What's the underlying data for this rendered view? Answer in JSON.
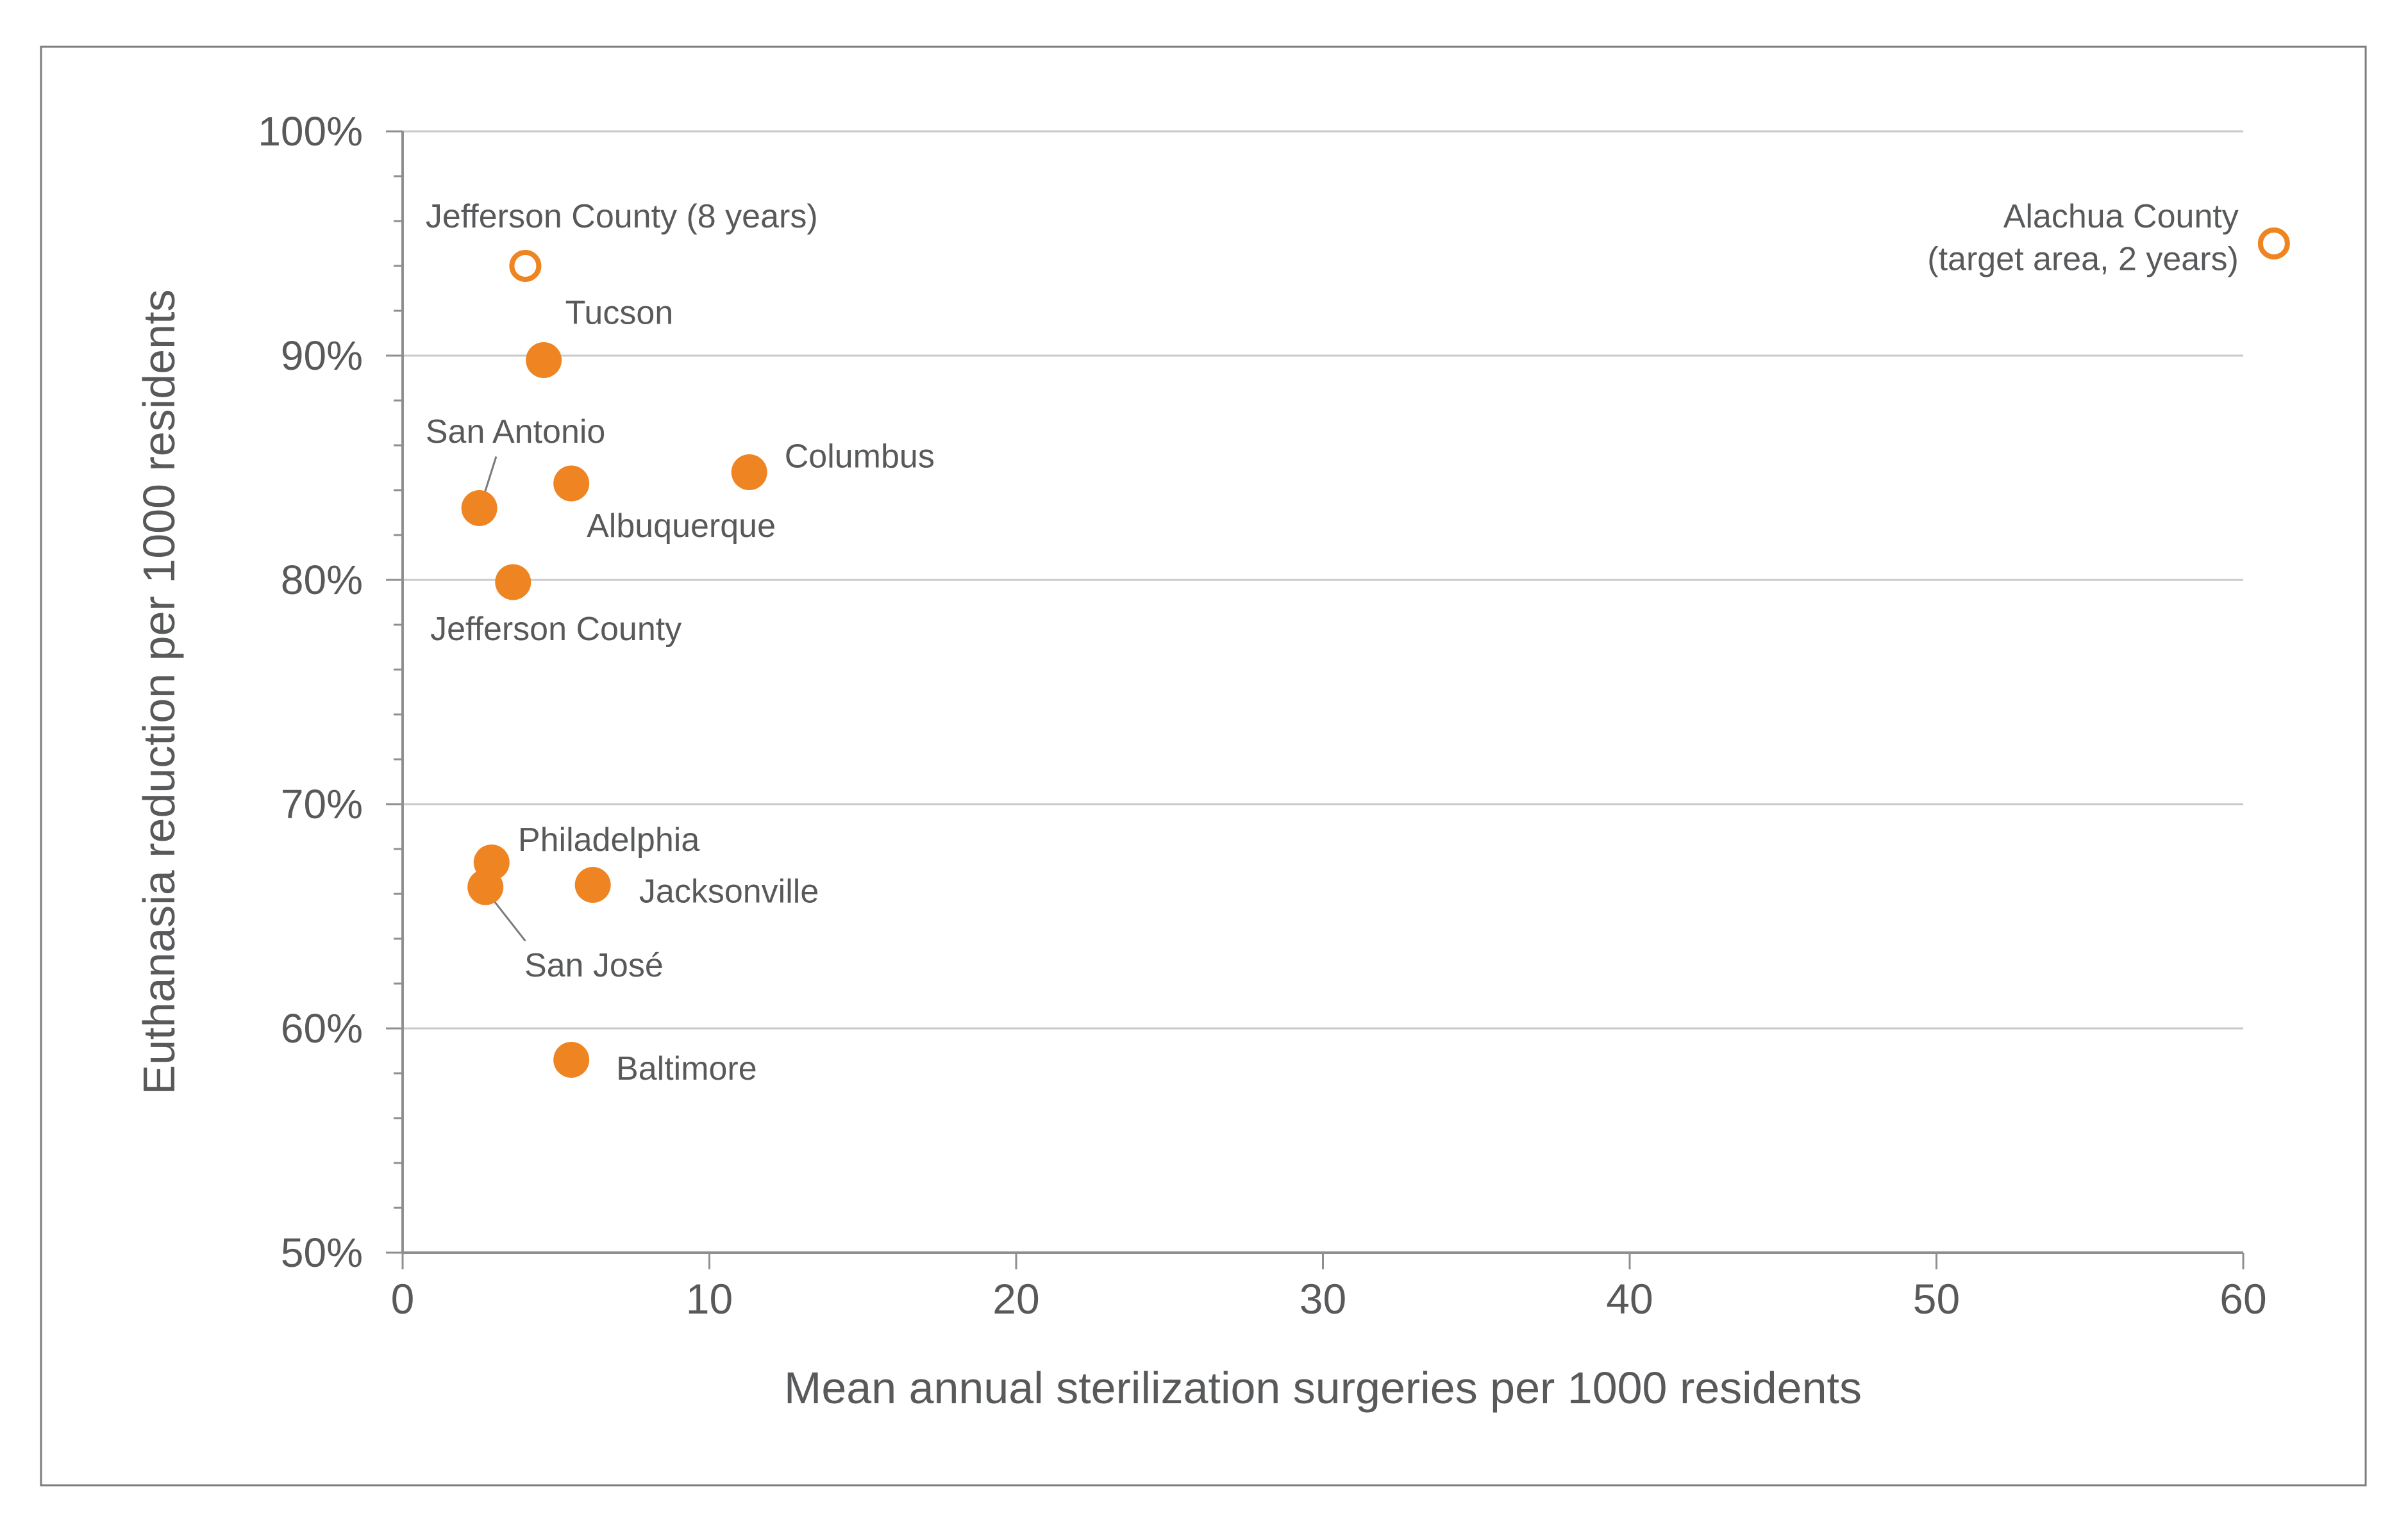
{
  "figure": {
    "background": "#FFFFFF",
    "frame_color": "#7D7D7D"
  },
  "chart_data": {
    "type": "scatter",
    "title": "",
    "xlabel": "Mean annual sterilization surgeries per 1000 residents",
    "ylabel": "Euthanasia reduction per 1000 residents",
    "xlim": [
      0,
      62
    ],
    "ylim": [
      50,
      100
    ],
    "grid": "horizontal-major",
    "legend": "none",
    "x_ticks": [
      {
        "value": 0,
        "label": "0"
      },
      {
        "value": 10,
        "label": "10"
      },
      {
        "value": 20,
        "label": "20"
      },
      {
        "value": 30,
        "label": "30"
      },
      {
        "value": 40,
        "label": "40"
      },
      {
        "value": 50,
        "label": "50"
      },
      {
        "value": 60,
        "label": "60"
      }
    ],
    "y_ticks": [
      {
        "value": 50,
        "label": "50%"
      },
      {
        "value": 60,
        "label": "60%"
      },
      {
        "value": 70,
        "label": "70%"
      },
      {
        "value": 80,
        "label": "80%"
      },
      {
        "value": 90,
        "label": "90%"
      },
      {
        "value": 100,
        "label": "100%"
      }
    ],
    "y_minor_tick_step": 2,
    "gridline_values": [
      60,
      70,
      80,
      90,
      100
    ],
    "gridline_x_end": 60,
    "points": [
      {
        "label": "Jefferson County (8 years)",
        "x": 4.0,
        "y": 94.0,
        "marker": "open",
        "label_x": 0.75,
        "label_y": 96.2,
        "anchor": "start"
      },
      {
        "label": "Tucson",
        "x": 4.6,
        "y": 89.8,
        "marker": "filled",
        "label_x": 5.3,
        "label_y": 91.9,
        "anchor": "start"
      },
      {
        "label": "San Antonio",
        "x": 2.5,
        "y": 83.2,
        "marker": "filled",
        "label_x": 0.75,
        "label_y": 86.6,
        "anchor": "start",
        "leader": {
          "x1": 3.05,
          "y1": 85.5,
          "x2": 2.68,
          "y2": 83.9
        }
      },
      {
        "label": "Albuquerque",
        "x": 5.5,
        "y": 84.3,
        "marker": "filled",
        "label_x": 6.0,
        "label_y": 82.4,
        "anchor": "start"
      },
      {
        "label": "Columbus",
        "x": 11.3,
        "y": 84.8,
        "marker": "filled",
        "label_x": 12.45,
        "label_y": 85.5,
        "anchor": "start"
      },
      {
        "label": "Jefferson County",
        "x": 3.6,
        "y": 79.9,
        "marker": "filled",
        "label_x": 0.9,
        "label_y": 77.8,
        "anchor": "start"
      },
      {
        "label": "Philadelphia",
        "x": 2.9,
        "y": 67.4,
        "marker": "filled",
        "label_x": 3.76,
        "label_y": 68.4,
        "anchor": "start"
      },
      {
        "label": "San José",
        "x": 2.7,
        "y": 66.3,
        "marker": "filled",
        "label_x": 3.97,
        "label_y": 62.8,
        "anchor": "start",
        "leader": {
          "x1": 2.97,
          "y1": 65.7,
          "x2": 4.0,
          "y2": 63.9
        }
      },
      {
        "label": "Jacksonville",
        "x": 6.2,
        "y": 66.4,
        "marker": "filled",
        "label_x": 7.71,
        "label_y": 66.1,
        "anchor": "start"
      },
      {
        "label": "Baltimore",
        "x": 5.5,
        "y": 58.6,
        "marker": "filled",
        "label_x": 6.96,
        "label_y": 58.2,
        "anchor": "start"
      },
      {
        "label": "Alachua County",
        "label_line2": "(target area, 2 years)",
        "x": 61.0,
        "y": 95.0,
        "marker": "open",
        "label_x": 59.85,
        "label_y": 96.2,
        "label_y2": 94.3,
        "anchor": "end"
      }
    ],
    "colors": {
      "marker": "#EF8522",
      "grid": "#C9C9C9",
      "axis": "#8F8F8F",
      "tick": "#8F8F8F",
      "text": "#58595B",
      "leader": "#7A7A7A"
    }
  }
}
